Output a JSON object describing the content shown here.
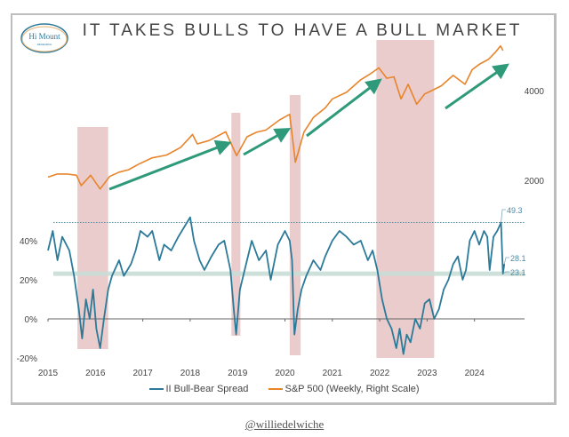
{
  "title": "IT TAKES BULLS TO HAVE A BULL MARKET",
  "logo": {
    "text": "Hi Mount",
    "subtext": "RESEARCH"
  },
  "footer": "@williedelwiche",
  "colors": {
    "spread": "#2b7a9a",
    "sp500": "#e8842a",
    "shade": "#e8c3c3",
    "arrow": "#2e9a7a",
    "band": "#c9ddd6"
  },
  "chart_data": {
    "type": "line",
    "x_ticks": [
      "2015",
      "2016",
      "2017",
      "2018",
      "2019",
      "2020",
      "2021",
      "2022",
      "2023",
      "2024"
    ],
    "left_axis": {
      "ticks": [
        "40%",
        "20%",
        "0%",
        "-20%"
      ],
      "tick_values": [
        40,
        20,
        0,
        -20
      ]
    },
    "right_axis": {
      "scale": "log",
      "ticks": [
        "4000",
        "2000"
      ],
      "tick_values": [
        4000,
        2000
      ]
    },
    "legend_position": "bottom",
    "series": [
      {
        "name": "II Bull-Bear Spread",
        "axis": "left",
        "x": [
          2015.0,
          2015.1,
          2015.2,
          2015.3,
          2015.45,
          2015.55,
          2015.65,
          2015.72,
          2015.8,
          2015.88,
          2015.95,
          2016.02,
          2016.1,
          2016.18,
          2016.27,
          2016.35,
          2016.5,
          2016.6,
          2016.75,
          2016.85,
          2016.95,
          2017.1,
          2017.2,
          2017.35,
          2017.45,
          2017.6,
          2017.75,
          2017.9,
          2018.0,
          2018.08,
          2018.2,
          2018.3,
          2018.45,
          2018.6,
          2018.72,
          2018.85,
          2018.92,
          2018.97,
          2019.05,
          2019.15,
          2019.3,
          2019.45,
          2019.6,
          2019.7,
          2019.85,
          2020.0,
          2020.1,
          2020.15,
          2020.2,
          2020.27,
          2020.35,
          2020.45,
          2020.6,
          2020.75,
          2020.85,
          2021.0,
          2021.15,
          2021.3,
          2021.45,
          2021.6,
          2021.75,
          2021.85,
          2021.95,
          2022.05,
          2022.15,
          2022.25,
          2022.35,
          2022.42,
          2022.5,
          2022.57,
          2022.65,
          2022.75,
          2022.85,
          2022.95,
          2023.05,
          2023.15,
          2023.25,
          2023.35,
          2023.45,
          2023.55,
          2023.65,
          2023.75,
          2023.82,
          2023.9,
          2024.0,
          2024.1,
          2024.2,
          2024.27,
          2024.32,
          2024.4,
          2024.48,
          2024.56,
          2024.6,
          2024.63
        ],
        "y": [
          35,
          45,
          30,
          42,
          35,
          22,
          5,
          -10,
          10,
          0,
          15,
          -5,
          -15,
          0,
          15,
          22,
          30,
          22,
          28,
          35,
          45,
          42,
          45,
          30,
          38,
          35,
          42,
          48,
          52,
          40,
          30,
          25,
          32,
          38,
          40,
          25,
          5,
          -8,
          15,
          25,
          40,
          30,
          35,
          20,
          38,
          45,
          40,
          30,
          -8,
          5,
          15,
          22,
          30,
          25,
          32,
          40,
          45,
          42,
          38,
          40,
          30,
          35,
          25,
          10,
          0,
          -5,
          -15,
          -5,
          -18,
          -8,
          -12,
          0,
          -5,
          8,
          10,
          0,
          5,
          15,
          20,
          28,
          32,
          20,
          25,
          40,
          45,
          38,
          45,
          42,
          25,
          42,
          45,
          49.3,
          23.1,
          28.1
        ],
        "annotations": [
          "49.3",
          "28.1",
          "23.1"
        ]
      },
      {
        "name": "S&P 500 (Weekly, Right Scale)",
        "axis": "right",
        "x": [
          2015.0,
          2015.2,
          2015.4,
          2015.6,
          2015.7,
          2015.9,
          2016.1,
          2016.3,
          2016.5,
          2016.7,
          2016.9,
          2017.2,
          2017.5,
          2017.8,
          2018.05,
          2018.15,
          2018.4,
          2018.75,
          2018.98,
          2019.2,
          2019.4,
          2019.6,
          2019.9,
          2020.1,
          2020.22,
          2020.4,
          2020.6,
          2020.85,
          2021.0,
          2021.3,
          2021.6,
          2021.8,
          2021.98,
          2022.15,
          2022.3,
          2022.45,
          2022.6,
          2022.78,
          2022.95,
          2023.1,
          2023.3,
          2023.55,
          2023.8,
          2023.95,
          2024.1,
          2024.3,
          2024.45,
          2024.55,
          2024.6
        ],
        "y": [
          2050,
          2100,
          2100,
          2080,
          1920,
          2080,
          1870,
          2060,
          2130,
          2170,
          2260,
          2380,
          2430,
          2580,
          2850,
          2650,
          2720,
          2910,
          2420,
          2800,
          2900,
          2950,
          3200,
          3330,
          2300,
          2900,
          3250,
          3500,
          3750,
          3950,
          4350,
          4550,
          4770,
          4400,
          4450,
          3750,
          4200,
          3600,
          3900,
          4000,
          4150,
          4500,
          4200,
          4700,
          4900,
          5100,
          5400,
          5650,
          5450
        ]
      }
    ],
    "reference_lines": [
      {
        "value": 49.3,
        "style": "dotted"
      },
      {
        "value": 23.1,
        "style": "band"
      }
    ],
    "shaded_periods": [
      [
        2015.62,
        2016.27
      ],
      [
        2018.87,
        2019.06
      ],
      [
        2020.1,
        2020.33
      ],
      [
        2021.93,
        2023.15
      ]
    ]
  }
}
